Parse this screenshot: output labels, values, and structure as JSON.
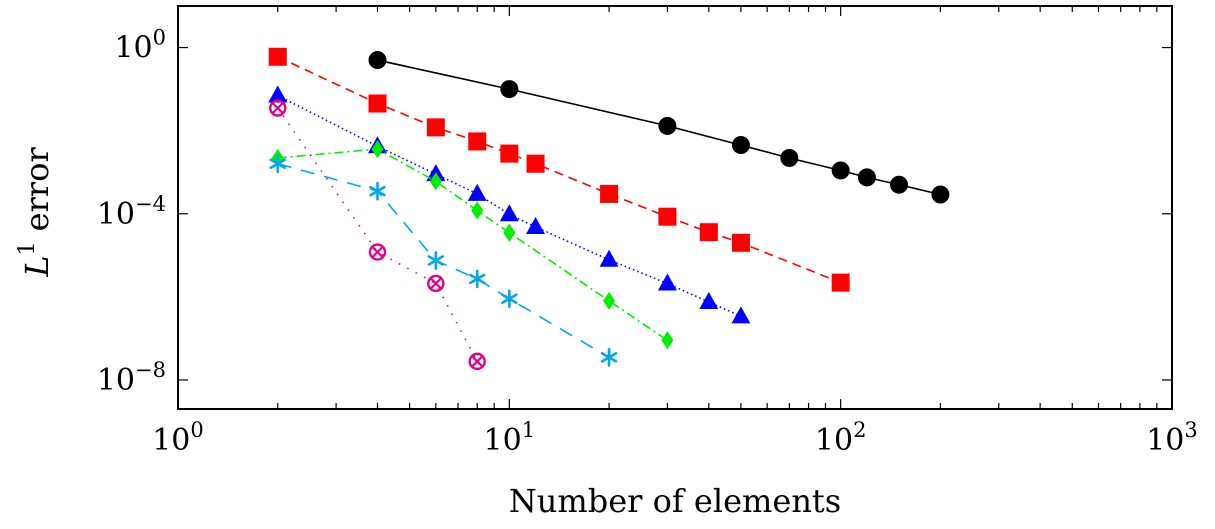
{
  "chart_data": {
    "type": "scatter",
    "x_scale": "log",
    "y_scale": "log",
    "xlim": [
      1,
      1000
    ],
    "ylim": [
      2e-09,
      10
    ],
    "xlabel": "Number of elements",
    "ylabel_base": "L",
    "ylabel_sup": "1",
    "ylabel_rest": " error",
    "x_ticks": [
      {
        "value": 1,
        "base": "10",
        "exp": "0"
      },
      {
        "value": 10,
        "base": "10",
        "exp": "1"
      },
      {
        "value": 100,
        "base": "10",
        "exp": "2"
      },
      {
        "value": 1000,
        "base": "10",
        "exp": "3"
      }
    ],
    "y_ticks": [
      {
        "value": 1,
        "base": "10",
        "exp": "0"
      },
      {
        "value": 0.0001,
        "base": "10",
        "exp": "−4"
      },
      {
        "value": 1e-08,
        "base": "10",
        "exp": "−8"
      }
    ],
    "grid": false,
    "series": [
      {
        "marker": "circle",
        "color": "#000000",
        "line": "solid",
        "x": [
          4,
          10,
          30,
          50,
          70,
          100,
          120,
          150,
          200
        ],
        "y": [
          0.5,
          0.1,
          0.013,
          0.0045,
          0.0022,
          0.0011,
          0.00075,
          0.0005,
          0.00029
        ]
      },
      {
        "marker": "square",
        "color": "#ff0000",
        "line": "dashed",
        "x": [
          2,
          4,
          6,
          8,
          10,
          12,
          20,
          30,
          40,
          50,
          100
        ],
        "y": [
          0.6,
          0.045,
          0.012,
          0.0055,
          0.0028,
          0.0016,
          0.0003,
          8.5e-05,
          3.6e-05,
          2e-05,
          2.2e-06
        ]
      },
      {
        "marker": "triangle",
        "color": "#0000ff",
        "line": "dotted",
        "x": [
          2,
          4,
          6,
          8,
          10,
          12,
          20,
          30,
          40,
          50
        ],
        "y": [
          0.07,
          0.0042,
          0.0009,
          0.0003,
          9.7e-05,
          4.8e-05,
          7.8e-06,
          2.1e-06,
          7.5e-07,
          3.4e-07
        ]
      },
      {
        "marker": "diamond",
        "color": "#00ee00",
        "line": "dashdot",
        "x": [
          2,
          4,
          6,
          8,
          10,
          20,
          30
        ],
        "y": [
          0.0022,
          0.0036,
          0.0006,
          0.00012,
          3.5e-05,
          8e-07,
          9e-08
        ]
      },
      {
        "marker": "star",
        "color": "#00a8e8",
        "line": "longdash",
        "x": [
          2,
          4,
          6,
          8,
          10,
          20
        ],
        "y": [
          0.0016,
          0.00035,
          7.5e-06,
          2.7e-06,
          9e-07,
          3.5e-08
        ]
      },
      {
        "marker": "otimes",
        "color": "#e0008c",
        "line": "sparse-dotted",
        "x": [
          2,
          4,
          6,
          8
        ],
        "y": [
          0.035,
          1.2e-05,
          2.1e-06,
          2.8e-08
        ]
      }
    ]
  }
}
